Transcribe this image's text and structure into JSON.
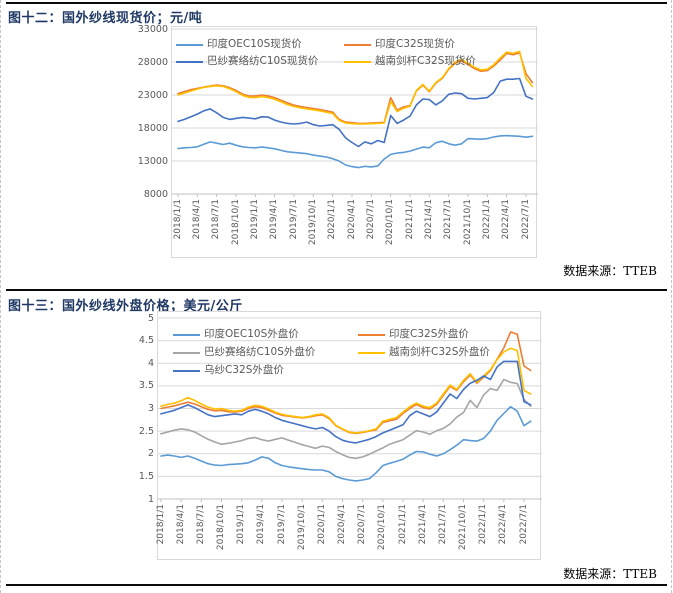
{
  "chart_data": [
    {
      "type": "line",
      "title": "图十二：国外纱线现货价；元/吨",
      "source": "数据来源：TTEB",
      "ylim": [
        8000,
        33000
      ],
      "y_ticks": [
        "33000",
        "28000",
        "23000",
        "18000",
        "13000",
        "8000"
      ],
      "x_ticks": [
        "2018/1/1",
        "2018/4/1",
        "2018/7/1",
        "2018/10/1",
        "2019/1/1",
        "2019/4/1",
        "2019/7/1",
        "2019/10/1",
        "2020/1/1",
        "2020/4/1",
        "2020/7/1",
        "2020/10/1",
        "2021/1/1",
        "2021/4/1",
        "2021/7/1",
        "2021/10/1",
        "2022/1/1",
        "2022/4/1",
        "2022/7/1"
      ],
      "grid": true,
      "legend_position": "top-inside",
      "legend_layout": [
        [
          0,
          1
        ],
        [
          2,
          3
        ]
      ],
      "series": [
        {
          "name": "印度OEC10S现货价",
          "color": "#5B9BD5",
          "values": [
            14900,
            15000,
            15050,
            15150,
            15550,
            15900,
            15700,
            15500,
            15700,
            15400,
            15150,
            15050,
            15000,
            15100,
            15000,
            14850,
            14600,
            14400,
            14300,
            14200,
            14100,
            13900,
            13750,
            13600,
            13350,
            13000,
            12400,
            12150,
            12000,
            12200,
            12100,
            12250,
            13300,
            14000,
            14200,
            14300,
            14500,
            14800,
            15100,
            15000,
            15750,
            16000,
            15600,
            15400,
            15600,
            16400,
            16350,
            16300,
            16400,
            16650,
            16800,
            16850,
            16800,
            16750,
            16600,
            16750
          ]
        },
        {
          "name": "印度C32S现货价",
          "color": "#ED7D31",
          "values": [
            23200,
            23500,
            23800,
            24000,
            24200,
            24350,
            24500,
            24400,
            24100,
            23700,
            23150,
            22850,
            22850,
            23000,
            22850,
            22600,
            22200,
            21800,
            21450,
            21250,
            21100,
            20950,
            20800,
            20600,
            20400,
            19300,
            18900,
            18800,
            18700,
            18700,
            18750,
            18800,
            18850,
            22600,
            20700,
            21200,
            21400,
            23600,
            24500,
            23500,
            24800,
            25500,
            26900,
            27800,
            28200,
            27600,
            27000,
            26600,
            26700,
            27400,
            28300,
            29300,
            29100,
            29400,
            26200,
            24900
          ]
        },
        {
          "name": "巴纱赛络纺C10S现货价",
          "color": "#4472C4",
          "values": [
            19000,
            19300,
            19700,
            20100,
            20600,
            20900,
            20300,
            19600,
            19300,
            19450,
            19600,
            19500,
            19400,
            19700,
            19650,
            19200,
            18900,
            18700,
            18600,
            18700,
            18900,
            18500,
            18300,
            18400,
            18500,
            17800,
            16500,
            15800,
            15200,
            15900,
            15600,
            16100,
            15800,
            19900,
            18700,
            19200,
            19800,
            21500,
            22400,
            22300,
            21500,
            22100,
            23100,
            23300,
            23200,
            22500,
            22400,
            22500,
            22600,
            23400,
            25100,
            25400,
            25400,
            25500,
            22800,
            22400
          ]
        },
        {
          "name": "越南剑杆C32S现货价",
          "color": "#FFC000",
          "values": [
            23000,
            23300,
            23600,
            23900,
            24150,
            24300,
            24400,
            24300,
            23950,
            23500,
            22950,
            22650,
            22600,
            22750,
            22600,
            22350,
            21950,
            21550,
            21250,
            21050,
            20900,
            20750,
            20600,
            20400,
            20200,
            19150,
            18750,
            18650,
            18600,
            18600,
            18650,
            18700,
            18750,
            22000,
            20500,
            21000,
            21300,
            23700,
            24600,
            23600,
            24900,
            25600,
            27000,
            28000,
            28400,
            27800,
            27200,
            26800,
            26900,
            27600,
            28600,
            29500,
            29300,
            29600,
            25500,
            24300
          ]
        }
      ]
    },
    {
      "type": "line",
      "title": "图十三：国外纱线外盘价格；美元/公斤",
      "source": "数据来源：TTEB",
      "ylim": [
        1,
        5
      ],
      "y_ticks": [
        "5",
        "4.5",
        "4",
        "3.5",
        "3",
        "2.5",
        "2",
        "1.5",
        "1"
      ],
      "x_ticks": [
        "2018/1/1",
        "2018/4/1",
        "2018/7/1",
        "2018/10/1",
        "2019/1/1",
        "2019/4/1",
        "2019/7/1",
        "2019/10/1",
        "2020/1/1",
        "2020/4/1",
        "2020/7/1",
        "2020/10/1",
        "2021/1/1",
        "2021/4/1",
        "2021/7/1",
        "2021/10/1",
        "2022/1/1",
        "2022/4/1",
        "2022/7/1"
      ],
      "grid": true,
      "legend_position": "top-inside",
      "legend_layout": [
        [
          0,
          1
        ],
        [
          2,
          3
        ],
        [
          4
        ]
      ],
      "series": [
        {
          "name": "印度OEC10S外盘价",
          "color": "#5B9BD5",
          "values": [
            1.95,
            1.97,
            1.95,
            1.92,
            1.95,
            1.9,
            1.84,
            1.78,
            1.75,
            1.74,
            1.76,
            1.77,
            1.78,
            1.8,
            1.86,
            1.93,
            1.9,
            1.8,
            1.74,
            1.71,
            1.69,
            1.67,
            1.65,
            1.64,
            1.64,
            1.6,
            1.5,
            1.45,
            1.42,
            1.4,
            1.42,
            1.45,
            1.58,
            1.74,
            1.79,
            1.83,
            1.88,
            1.97,
            2.05,
            2.04,
            1.99,
            1.95,
            2.0,
            2.09,
            2.19,
            2.31,
            2.29,
            2.28,
            2.34,
            2.5,
            2.74,
            2.89,
            3.04,
            2.94,
            2.62,
            2.72
          ]
        },
        {
          "name": "印度C32S外盘价",
          "color": "#ED7D31",
          "values": [
            3.0,
            3.03,
            3.06,
            3.1,
            3.14,
            3.1,
            3.04,
            2.98,
            2.95,
            2.96,
            2.93,
            2.92,
            2.94,
            3.0,
            3.04,
            3.02,
            2.96,
            2.9,
            2.85,
            2.83,
            2.81,
            2.79,
            2.81,
            2.84,
            2.86,
            2.78,
            2.62,
            2.54,
            2.47,
            2.45,
            2.47,
            2.5,
            2.53,
            2.69,
            2.73,
            2.76,
            2.89,
            3.0,
            3.09,
            3.02,
            2.99,
            3.09,
            3.29,
            3.49,
            3.4,
            3.59,
            3.74,
            3.56,
            3.69,
            3.84,
            4.09,
            4.34,
            4.69,
            4.64,
            3.94,
            3.84
          ]
        },
        {
          "name": "巴纱赛络纺C10S外盘价",
          "color": "#A5A5A5",
          "values": [
            2.44,
            2.48,
            2.52,
            2.55,
            2.53,
            2.48,
            2.4,
            2.32,
            2.26,
            2.21,
            2.23,
            2.26,
            2.29,
            2.34,
            2.36,
            2.31,
            2.28,
            2.32,
            2.35,
            2.3,
            2.25,
            2.2,
            2.16,
            2.12,
            2.17,
            2.14,
            2.05,
            1.98,
            1.92,
            1.9,
            1.93,
            1.99,
            2.06,
            2.13,
            2.21,
            2.26,
            2.31,
            2.41,
            2.51,
            2.48,
            2.43,
            2.51,
            2.56,
            2.66,
            2.81,
            2.91,
            3.18,
            3.02,
            3.3,
            3.44,
            3.4,
            3.64,
            3.58,
            3.55,
            3.2,
            3.05
          ]
        },
        {
          "name": "越南剑杆C32S外盘价",
          "color": "#FFC000",
          "values": [
            3.05,
            3.09,
            3.12,
            3.17,
            3.24,
            3.18,
            3.1,
            3.03,
            2.99,
            3.0,
            2.96,
            2.94,
            2.96,
            3.03,
            3.07,
            3.05,
            2.99,
            2.92,
            2.87,
            2.84,
            2.82,
            2.8,
            2.82,
            2.86,
            2.88,
            2.8,
            2.63,
            2.55,
            2.48,
            2.46,
            2.48,
            2.51,
            2.55,
            2.72,
            2.76,
            2.8,
            2.92,
            3.04,
            3.12,
            3.05,
            3.02,
            3.12,
            3.32,
            3.52,
            3.42,
            3.62,
            3.77,
            3.58,
            3.72,
            3.86,
            4.08,
            4.25,
            4.33,
            4.28,
            3.4,
            3.32
          ]
        },
        {
          "name": "乌纱C32S外盘价",
          "color": "#4472C4",
          "values": [
            2.88,
            2.92,
            2.96,
            3.02,
            3.08,
            3.02,
            2.94,
            2.86,
            2.82,
            2.84,
            2.86,
            2.88,
            2.86,
            2.94,
            2.98,
            2.94,
            2.88,
            2.8,
            2.74,
            2.7,
            2.66,
            2.62,
            2.58,
            2.55,
            2.58,
            2.5,
            2.38,
            2.3,
            2.26,
            2.24,
            2.28,
            2.32,
            2.38,
            2.46,
            2.52,
            2.58,
            2.64,
            2.84,
            2.94,
            2.88,
            2.82,
            2.92,
            3.12,
            3.32,
            3.22,
            3.42,
            3.56,
            3.62,
            3.72,
            3.64,
            3.92,
            4.04,
            4.04,
            4.04,
            3.15,
            3.08
          ]
        }
      ]
    }
  ]
}
